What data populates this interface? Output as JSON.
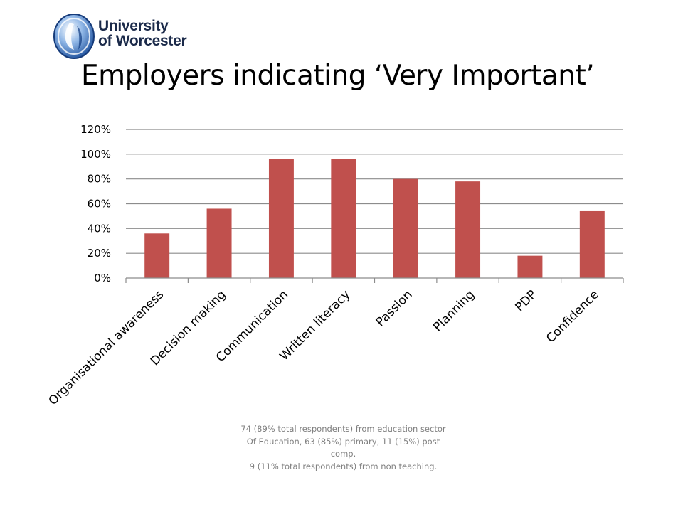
{
  "logo": {
    "line1": "University",
    "line2": "of Worcester",
    "emblem": "worcester-emblem-icon"
  },
  "footnote": {
    "lines": [
      "74 (89% total respondents) from education sector",
      "Of Education,  63 (85%) primary, 11 (15%) post comp.",
      "9 (11% total respondents) from non teaching."
    ]
  },
  "chart_data": {
    "type": "bar",
    "title": "Employers indicating ‘Very Important’",
    "categories": [
      "Organisational awareness",
      "Decision making",
      "Communication",
      "Written literacy",
      "Passion",
      "Planning",
      "PDP",
      "Confidence"
    ],
    "values": [
      36,
      56,
      96,
      96,
      80,
      78,
      18,
      54
    ],
    "ylim": [
      0,
      120
    ],
    "yticks": [
      "0%",
      "20%",
      "40%",
      "60%",
      "80%",
      "100%",
      "120%"
    ],
    "grid": true,
    "bar_color": "#c0504d",
    "xlabel": "",
    "ylabel": ""
  }
}
